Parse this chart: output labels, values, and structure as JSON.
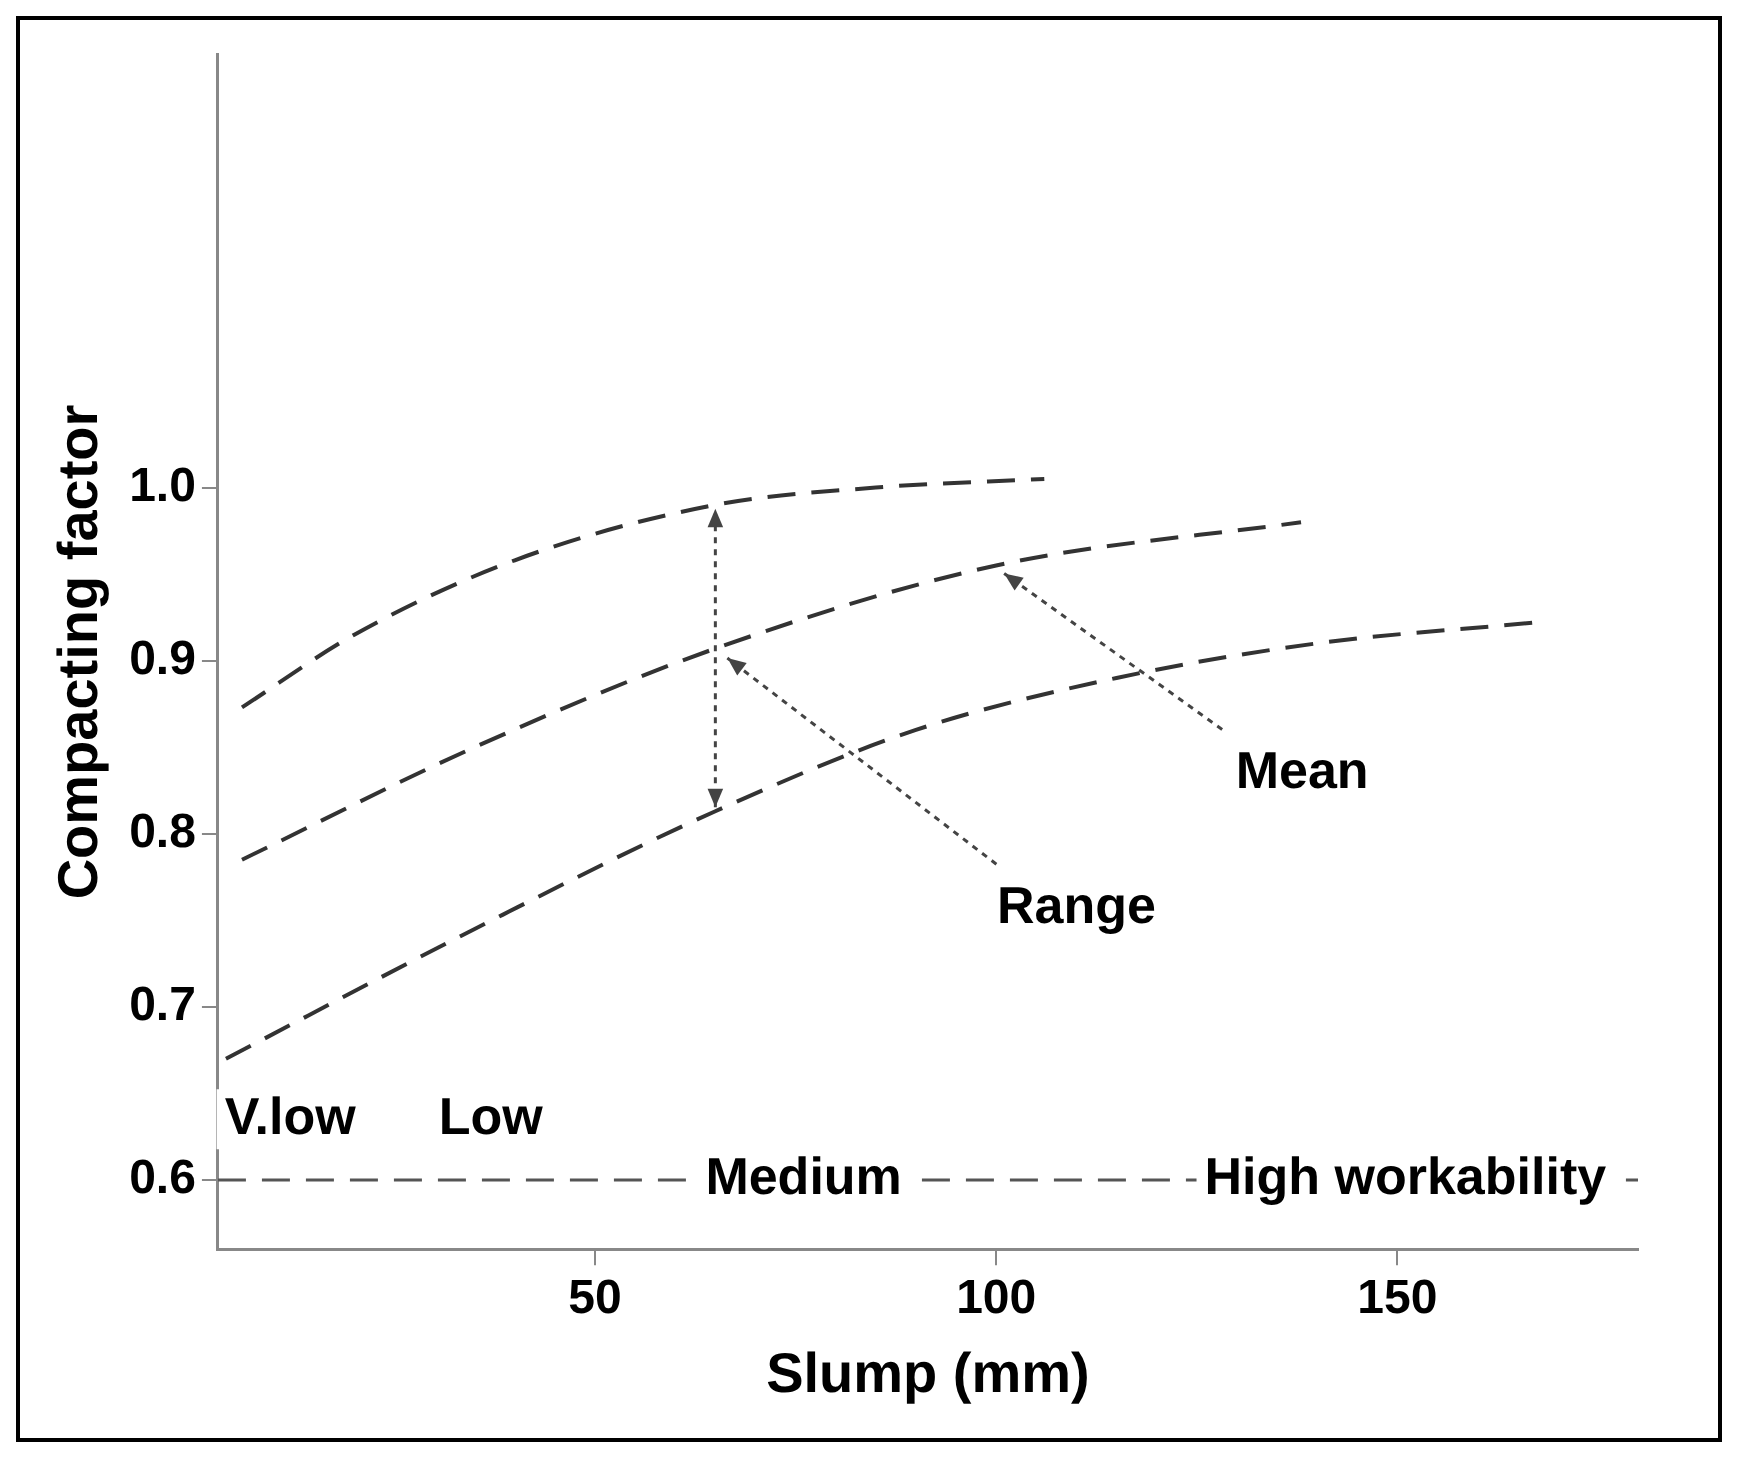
{
  "chart_data": {
    "type": "line",
    "xlabel": "Slump (mm)",
    "ylabel": "Compacting factor",
    "xlim": [
      3,
      180
    ],
    "xticks": [
      50,
      100,
      150
    ],
    "ylim": [
      0.56,
      1.25
    ],
    "yticks": [
      0.6,
      0.7,
      0.8,
      0.9,
      {
        "value": 1.0,
        "label": "1.0"
      }
    ],
    "series": [
      {
        "color": "#333333",
        "line_style": "dashed",
        "x": [
          6,
          20,
          40,
          65,
          85,
          106
        ],
        "values": [
          0.873,
          0.915,
          0.958,
          0.99,
          1.0,
          1.005
        ]
      },
      {
        "color": "#333333",
        "line_style": "dashed",
        "x": [
          6,
          35,
          65,
          100,
          138
        ],
        "values": [
          0.785,
          0.85,
          0.907,
          0.955,
          0.98
        ]
      },
      {
        "color": "#333333",
        "line_style": "dashed",
        "x": [
          4,
          35,
          65,
          90,
          115,
          140,
          167
        ],
        "values": [
          0.67,
          0.745,
          0.813,
          0.86,
          0.89,
          0.91,
          0.922
        ]
      }
    ],
    "ref_lines": [
      {
        "axis": "y",
        "value": 0.6,
        "color": "#555555",
        "line_style": "dashed"
      }
    ],
    "annotations": [
      {
        "text": "Mean",
        "x": 100,
        "y": 0.955
      },
      "Range",
      "V.low",
      "Low",
      {
        "text": "Medium",
        "x": 76,
        "y": 0.6
      },
      {
        "text": "High workability",
        "x": 151,
        "y": 0.6
      }
    ],
    "grid": false,
    "legend": false,
    "marker": "none"
  }
}
